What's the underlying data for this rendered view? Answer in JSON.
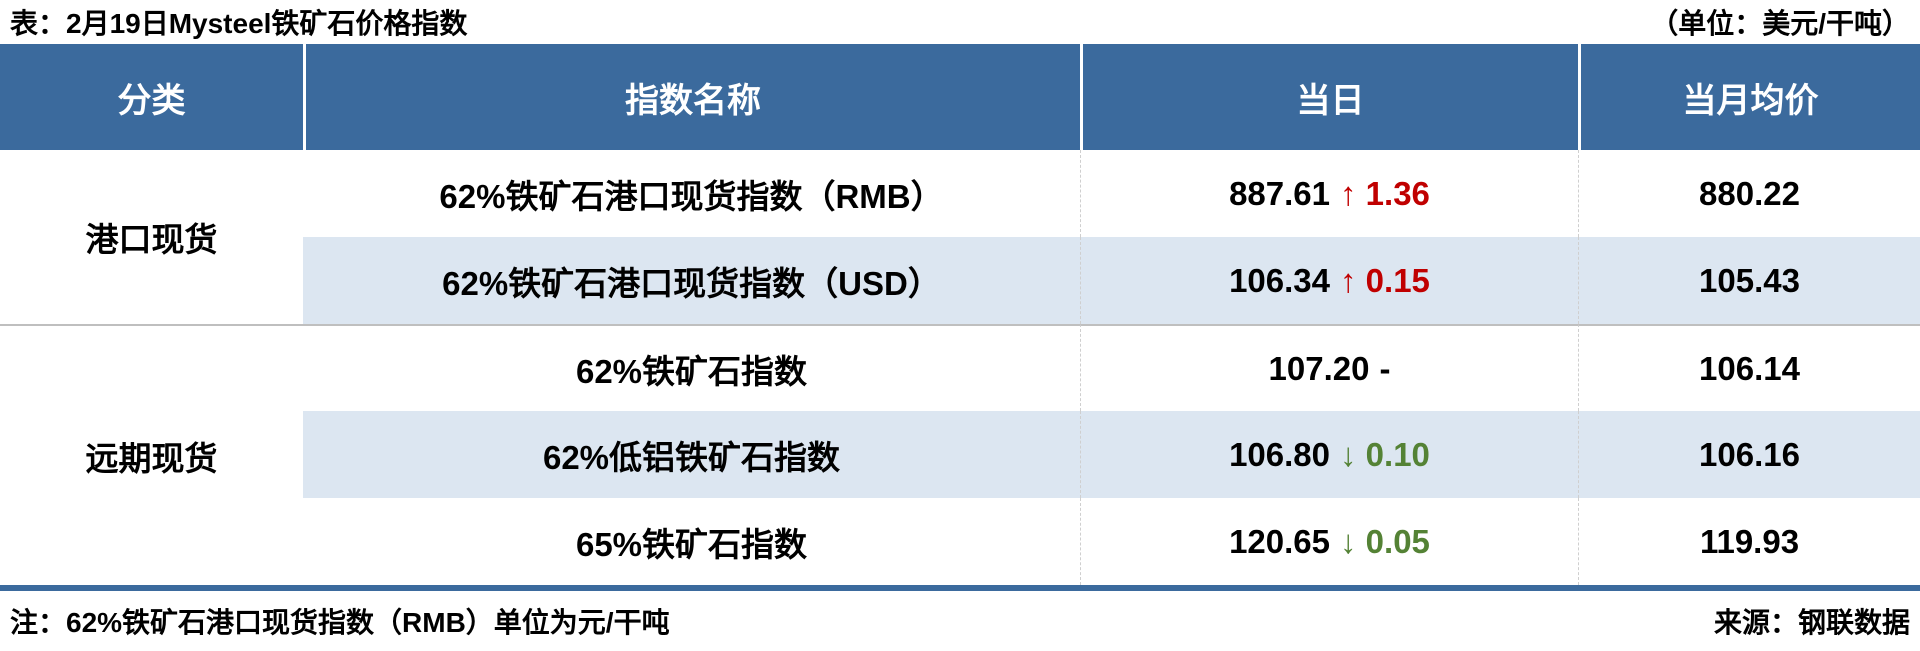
{
  "title": "表：2月19日Mysteel铁矿石价格指数",
  "unit_note": "（单位：美元/干吨）",
  "colors": {
    "header_bg": "#3B6A9D",
    "row_shade": "#DCE6F1",
    "up_red": "#C00000",
    "down_green": "#548235",
    "group_divider": "#BFBFBF",
    "column_dash": "#CFCFCF"
  },
  "chart_data": {
    "type": "table",
    "title": "表：2月19日Mysteel铁矿石价格指数",
    "unit": "美元/干吨",
    "columns": [
      "分类",
      "指数名称",
      "当日",
      "当月均价"
    ],
    "groups": [
      {
        "category": "港口现货",
        "rows": [
          {
            "name": "62%铁矿石港口现货指数（RMB）",
            "daily": "887.61",
            "change": "↑ 1.36",
            "direction": "up",
            "monthly_avg": "880.22"
          },
          {
            "name": "62%铁矿石港口现货指数（USD）",
            "daily": "106.34",
            "change": "↑ 0.15",
            "direction": "up",
            "monthly_avg": "105.43"
          }
        ]
      },
      {
        "category": "远期现货",
        "rows": [
          {
            "name": "62%铁矿石指数",
            "daily": "107.20",
            "change": "-",
            "direction": "flat",
            "monthly_avg": "106.14"
          },
          {
            "name": "62%低铝铁矿石指数",
            "daily": "106.80",
            "change": "↓ 0.10",
            "direction": "down",
            "monthly_avg": "106.16"
          },
          {
            "name": "65%铁矿石指数",
            "daily": "120.65",
            "change": "↓ 0.05",
            "direction": "down",
            "monthly_avg": "119.93"
          }
        ]
      }
    ],
    "footnote": "注：62%铁矿石港口现货指数（RMB）单位为元/干吨",
    "source": "来源：钢联数据"
  }
}
